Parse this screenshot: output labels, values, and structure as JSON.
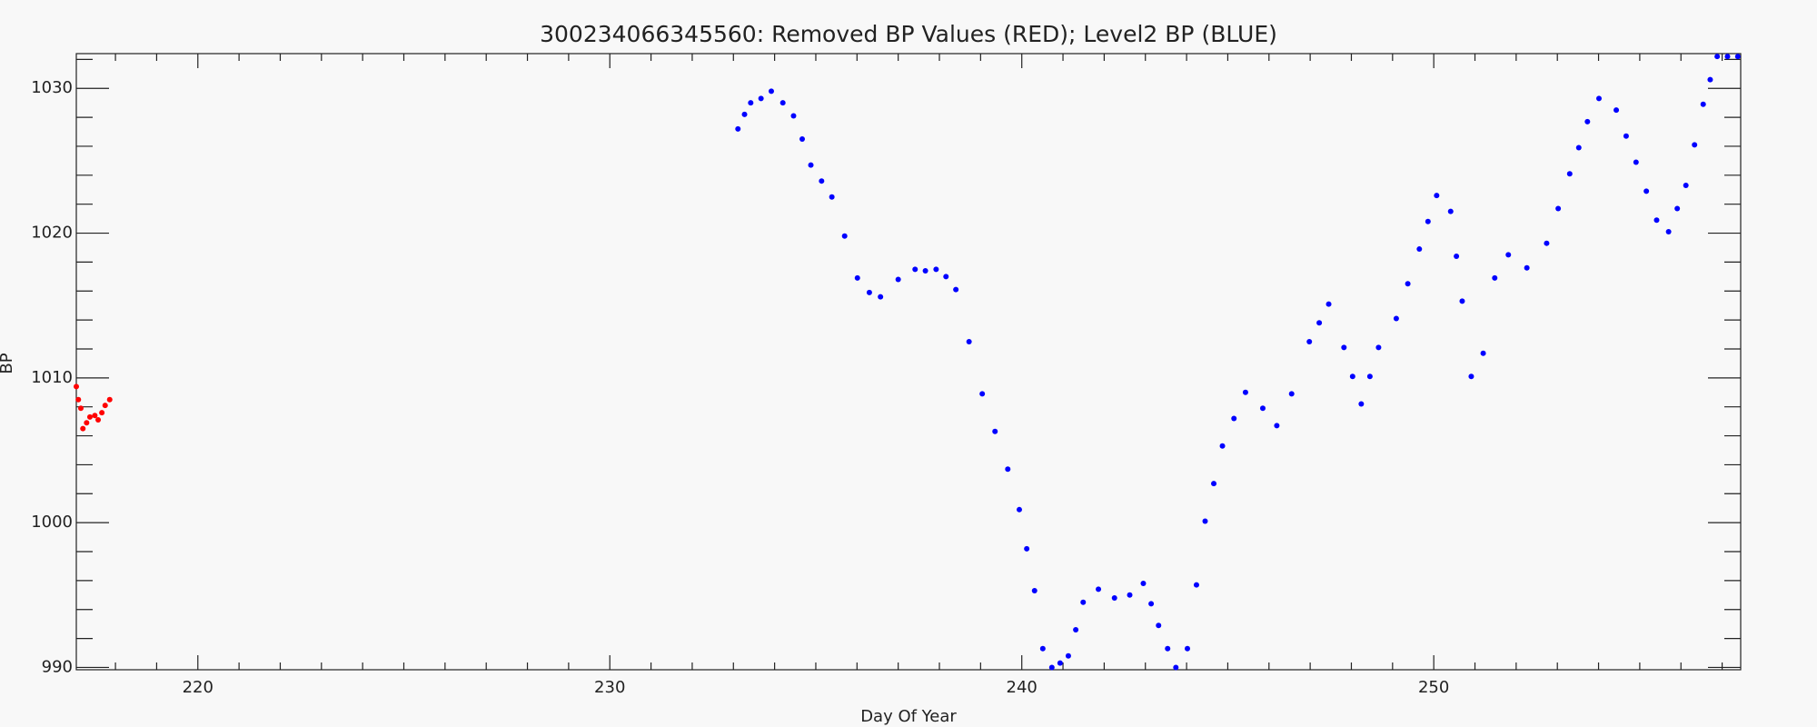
{
  "chart_data": {
    "type": "scatter",
    "title": "300234066345560: Removed BP Values (RED); Level2 BP (BLUE)",
    "xlabel": "Day Of Year",
    "ylabel": "BP",
    "xlim": [
      217.05,
      257.45
    ],
    "ylim": [
      989.84,
      1032.4
    ],
    "xticks": [
      220,
      230,
      240,
      250
    ],
    "yticks": [
      990,
      1000,
      1010,
      1020,
      1030
    ],
    "xminorticks": [
      218,
      219,
      221,
      222,
      223,
      224,
      225,
      226,
      227,
      228,
      229,
      231,
      232,
      233,
      234,
      235,
      236,
      237,
      238,
      239,
      241,
      242,
      243,
      244,
      245,
      246,
      247,
      248,
      249,
      251,
      252,
      253,
      254,
      255,
      256,
      257
    ],
    "yminorticks": [
      992,
      994,
      996,
      998,
      1002,
      1004,
      1006,
      1008,
      1012,
      1014,
      1016,
      1018,
      1022,
      1024,
      1026,
      1028,
      1032
    ],
    "series": [
      {
        "color": "#ff0000",
        "x": [
          217.05,
          217.1,
          217.16,
          217.21,
          217.3,
          217.38,
          217.5,
          217.58,
          217.67,
          217.75,
          217.86
        ],
        "values": [
          1009.4,
          1008.5,
          1007.9,
          1006.5,
          1006.9,
          1007.3,
          1007.4,
          1007.1,
          1007.6,
          1008.1,
          1008.5
        ]
      },
      {
        "color": "#0000ff",
        "x": [
          233.11,
          233.27,
          233.42,
          233.67,
          233.92,
          234.2,
          234.46,
          234.67,
          234.88,
          235.14,
          235.39,
          235.7,
          236.01,
          236.3,
          236.57,
          237.0,
          237.41,
          237.66,
          237.92,
          238.16,
          238.4,
          238.72,
          239.04,
          239.35,
          239.66,
          239.94,
          240.12,
          240.31,
          240.51,
          240.73,
          240.93,
          241.13,
          241.31,
          241.49,
          241.86,
          242.25,
          242.62,
          242.95,
          243.14,
          243.32,
          243.54,
          243.74,
          244.02,
          244.24,
          244.45,
          244.66,
          244.87,
          245.15,
          245.43,
          245.85,
          246.19,
          246.55,
          246.98,
          247.22,
          247.45,
          247.82,
          248.03,
          248.24,
          248.45,
          248.66,
          249.09,
          249.37,
          249.65,
          249.86,
          250.07,
          250.41,
          250.55,
          250.69,
          250.91,
          251.2,
          251.48,
          251.81,
          252.26,
          252.74,
          253.02,
          253.3,
          253.52,
          253.73,
          254.01,
          254.43,
          254.67,
          254.91,
          255.16,
          255.41,
          255.7,
          255.91,
          256.12,
          256.33,
          256.54,
          256.71,
          256.88,
          257.13,
          257.38
        ],
        "values": [
          1027.2,
          1028.2,
          1029.0,
          1029.3,
          1029.8,
          1029.0,
          1028.1,
          1026.5,
          1024.7,
          1023.6,
          1022.5,
          1019.8,
          1016.9,
          1015.9,
          1015.6,
          1016.8,
          1017.5,
          1017.4,
          1017.5,
          1017.0,
          1016.1,
          1012.5,
          1008.9,
          1006.3,
          1003.7,
          1000.9,
          998.2,
          995.3,
          991.3,
          990.0,
          990.3,
          990.8,
          992.6,
          994.5,
          995.4,
          994.8,
          995.0,
          995.8,
          994.4,
          992.9,
          991.3,
          990.0,
          991.3,
          995.7,
          1000.1,
          1002.7,
          1005.3,
          1007.2,
          1009.0,
          1007.9,
          1006.7,
          1008.9,
          1012.5,
          1013.8,
          1015.1,
          1012.1,
          1010.1,
          1008.2,
          1010.1,
          1012.1,
          1014.1,
          1016.5,
          1018.9,
          1020.8,
          1022.6,
          1021.5,
          1018.4,
          1015.3,
          1010.1,
          1011.7,
          1016.9,
          1018.5,
          1017.6,
          1019.3,
          1021.7,
          1024.1,
          1025.9,
          1027.7,
          1029.3,
          1028.5,
          1026.7,
          1024.9,
          1022.9,
          1020.9,
          1020.1,
          1021.7,
          1023.3,
          1026.1,
          1028.9,
          1030.6,
          1032.2,
          1032.2,
          1032.2
        ]
      }
    ]
  }
}
